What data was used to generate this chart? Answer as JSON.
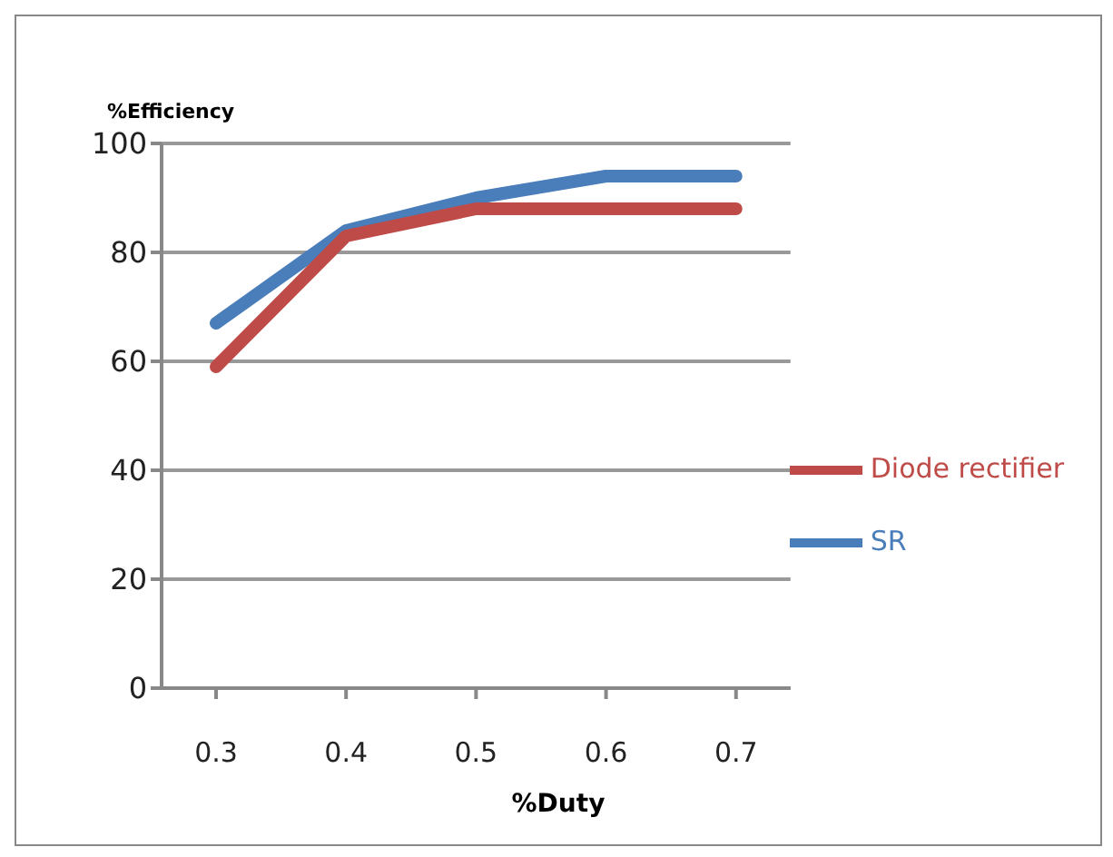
{
  "chart_data": {
    "type": "line",
    "xlabel": "%Duty",
    "ylabel": "%Efficiency",
    "categories": [
      "0.3",
      "0.4",
      "0.5",
      "0.6",
      "0.7"
    ],
    "series": [
      {
        "name": "SR",
        "color": "#4a7ebb",
        "values": [
          67,
          84,
          90,
          94,
          94
        ]
      },
      {
        "name": "Diode rectifier",
        "color": "#be4b48",
        "values": [
          59,
          83,
          88,
          88,
          88
        ]
      }
    ],
    "ylim": [
      0,
      100
    ],
    "yticks": [
      0,
      20,
      40,
      60,
      80,
      100
    ],
    "grid": "y",
    "legend": "right",
    "marker": "none"
  }
}
